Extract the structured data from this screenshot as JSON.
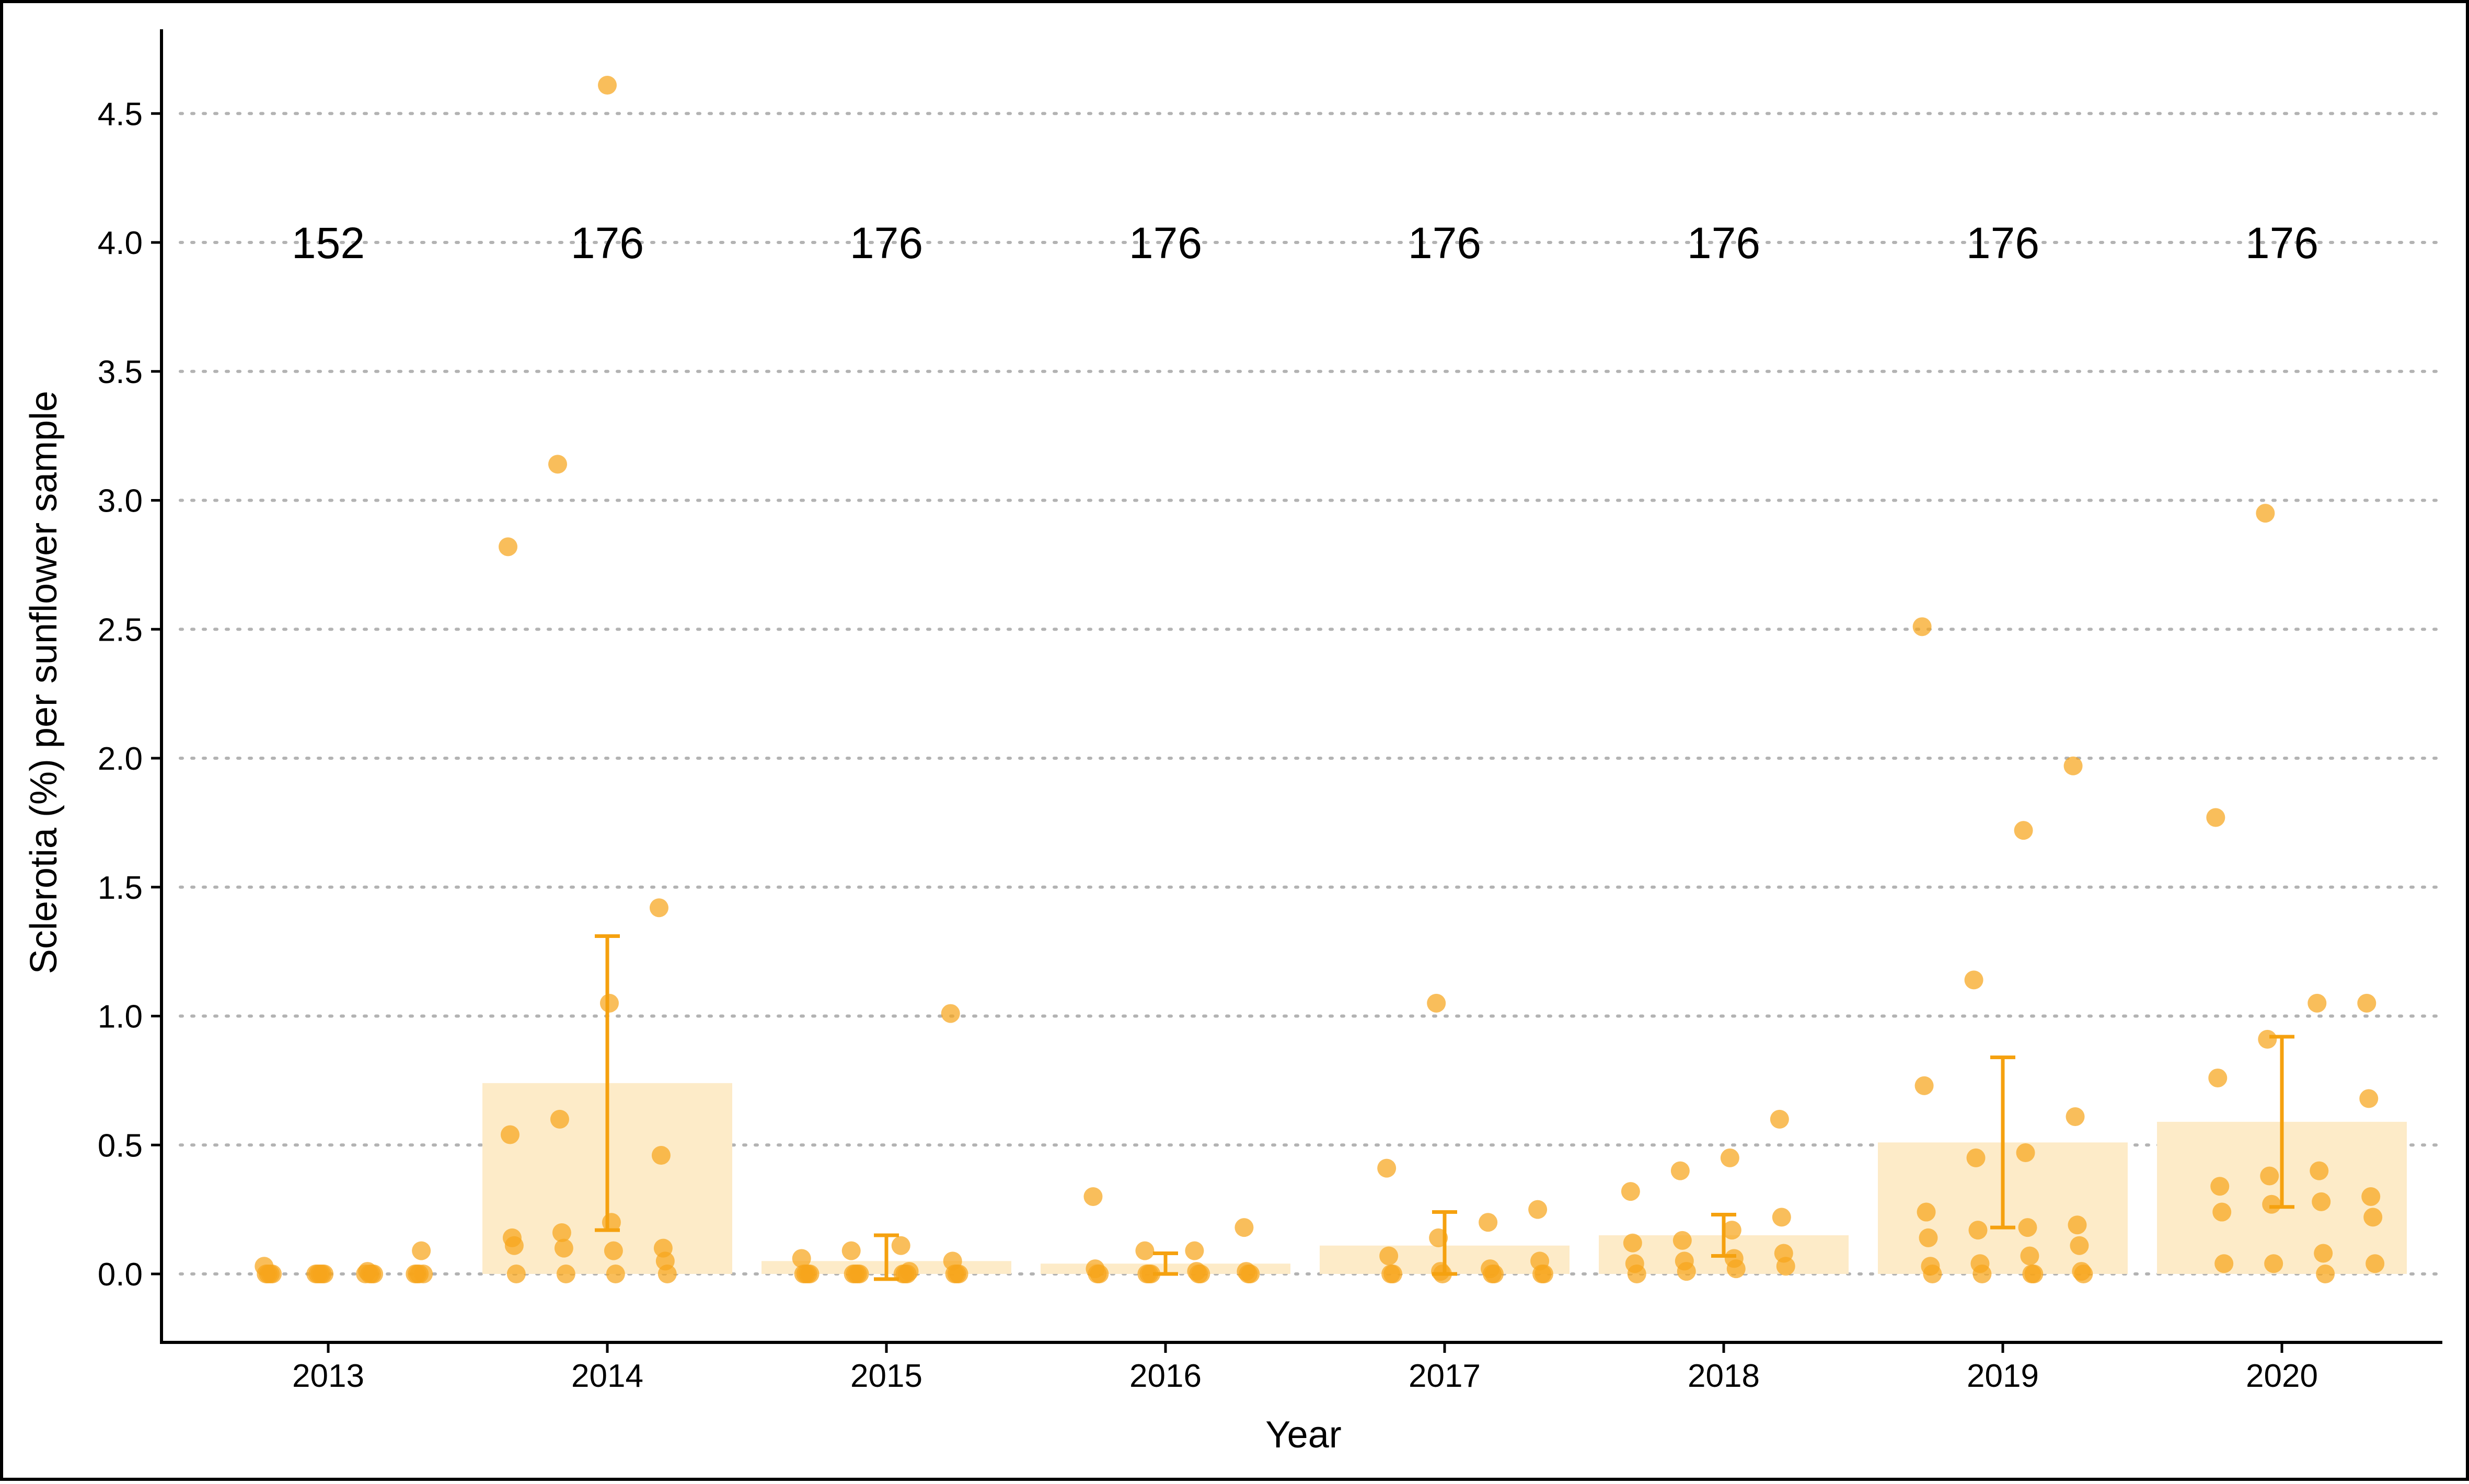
{
  "chart_data": {
    "type": "bar",
    "title": "",
    "xlabel": "Year",
    "ylabel": "Sclerotia (%) per sunflower sample",
    "categories": [
      "2013",
      "2014",
      "2015",
      "2016",
      "2017",
      "2018",
      "2019",
      "2020"
    ],
    "ylim": [
      -0.27,
      4.6
    ],
    "yticks": [
      "0.0",
      "0.5",
      "1.0",
      "1.5",
      "2.0",
      "2.5",
      "3.0",
      "3.5",
      "4.0",
      "4.5"
    ],
    "grid": "horizontal dotted",
    "colors": {
      "bar": "#fdebc8",
      "points": "#f7a51c",
      "errorbar": "#f5a10f"
    },
    "n_label_y": 4.0,
    "sample_counts": [
      "152",
      "176",
      "176",
      "176",
      "176",
      "176",
      "176",
      "176"
    ],
    "bars": [
      {
        "year": "2013",
        "mean": 0.0,
        "err_low": null,
        "err_high": null
      },
      {
        "year": "2014",
        "mean": 0.74,
        "err_low": 0.17,
        "err_high": 1.31
      },
      {
        "year": "2015",
        "mean": 0.05,
        "err_low": -0.02,
        "err_high": 0.15
      },
      {
        "year": "2016",
        "mean": 0.04,
        "err_low": 0.0,
        "err_high": 0.08
      },
      {
        "year": "2017",
        "mean": 0.11,
        "err_low": 0.0,
        "err_high": 0.24
      },
      {
        "year": "2018",
        "mean": 0.15,
        "err_low": 0.07,
        "err_high": 0.23
      },
      {
        "year": "2019",
        "mean": 0.51,
        "err_low": 0.18,
        "err_high": 0.84
      },
      {
        "year": "2020",
        "mean": 0.59,
        "err_low": 0.26,
        "err_high": 0.92
      }
    ],
    "points": [
      {
        "year": "2013",
        "values": [
          0.03,
          0.0,
          0.0,
          0.0,
          0.0,
          0.0,
          0.01,
          0.0,
          0.0,
          0.0,
          0.0,
          0.0,
          0.0,
          0.09,
          0.0,
          0.0,
          0.0,
          0.0,
          0.0,
          0.0
        ]
      },
      {
        "year": "2014",
        "values": [
          4.61,
          3.14,
          2.82,
          1.42,
          1.05,
          0.6,
          0.54,
          0.46,
          0.2,
          0.16,
          0.14,
          0.1,
          0.09,
          0.1,
          0.11,
          0.05,
          0.0,
          0.0,
          0.0,
          0.0
        ]
      },
      {
        "year": "2015",
        "values": [
          1.01,
          0.11,
          0.09,
          0.06,
          0.05,
          0.0,
          0.0,
          0.0,
          0.0,
          0.0,
          0.0,
          0.0,
          0.0,
          0.0,
          0.0,
          0.0,
          0.0,
          0.01,
          0.0,
          0.0
        ]
      },
      {
        "year": "2016",
        "values": [
          0.3,
          0.18,
          0.09,
          0.09,
          0.02,
          0.01,
          0.01,
          0.0,
          0.0,
          0.0,
          0.0,
          0.0,
          0.0,
          0.0,
          0.0,
          0.0
        ]
      },
      {
        "year": "2017",
        "values": [
          1.05,
          0.41,
          0.25,
          0.2,
          0.14,
          0.07,
          0.05,
          0.02,
          0.01,
          0.0,
          0.0,
          0.0,
          0.0,
          0.0,
          0.0,
          0.0
        ]
      },
      {
        "year": "2018",
        "values": [
          0.6,
          0.45,
          0.4,
          0.32,
          0.22,
          0.17,
          0.13,
          0.12,
          0.08,
          0.06,
          0.05,
          0.04,
          0.03,
          0.02,
          0.01,
          0.0
        ]
      },
      {
        "year": "2019",
        "values": [
          2.51,
          1.97,
          1.72,
          1.14,
          0.73,
          0.61,
          0.47,
          0.45,
          0.24,
          0.19,
          0.18,
          0.17,
          0.14,
          0.11,
          0.07,
          0.04,
          0.03,
          0.01,
          0.0,
          0.0,
          0.0,
          0.0,
          0.0
        ]
      },
      {
        "year": "2020",
        "values": [
          2.95,
          1.77,
          1.05,
          1.05,
          0.91,
          0.76,
          0.68,
          0.4,
          0.38,
          0.34,
          0.3,
          0.28,
          0.27,
          0.24,
          0.22,
          0.08,
          0.04,
          0.04,
          0.04,
          0.0
        ]
      }
    ]
  }
}
